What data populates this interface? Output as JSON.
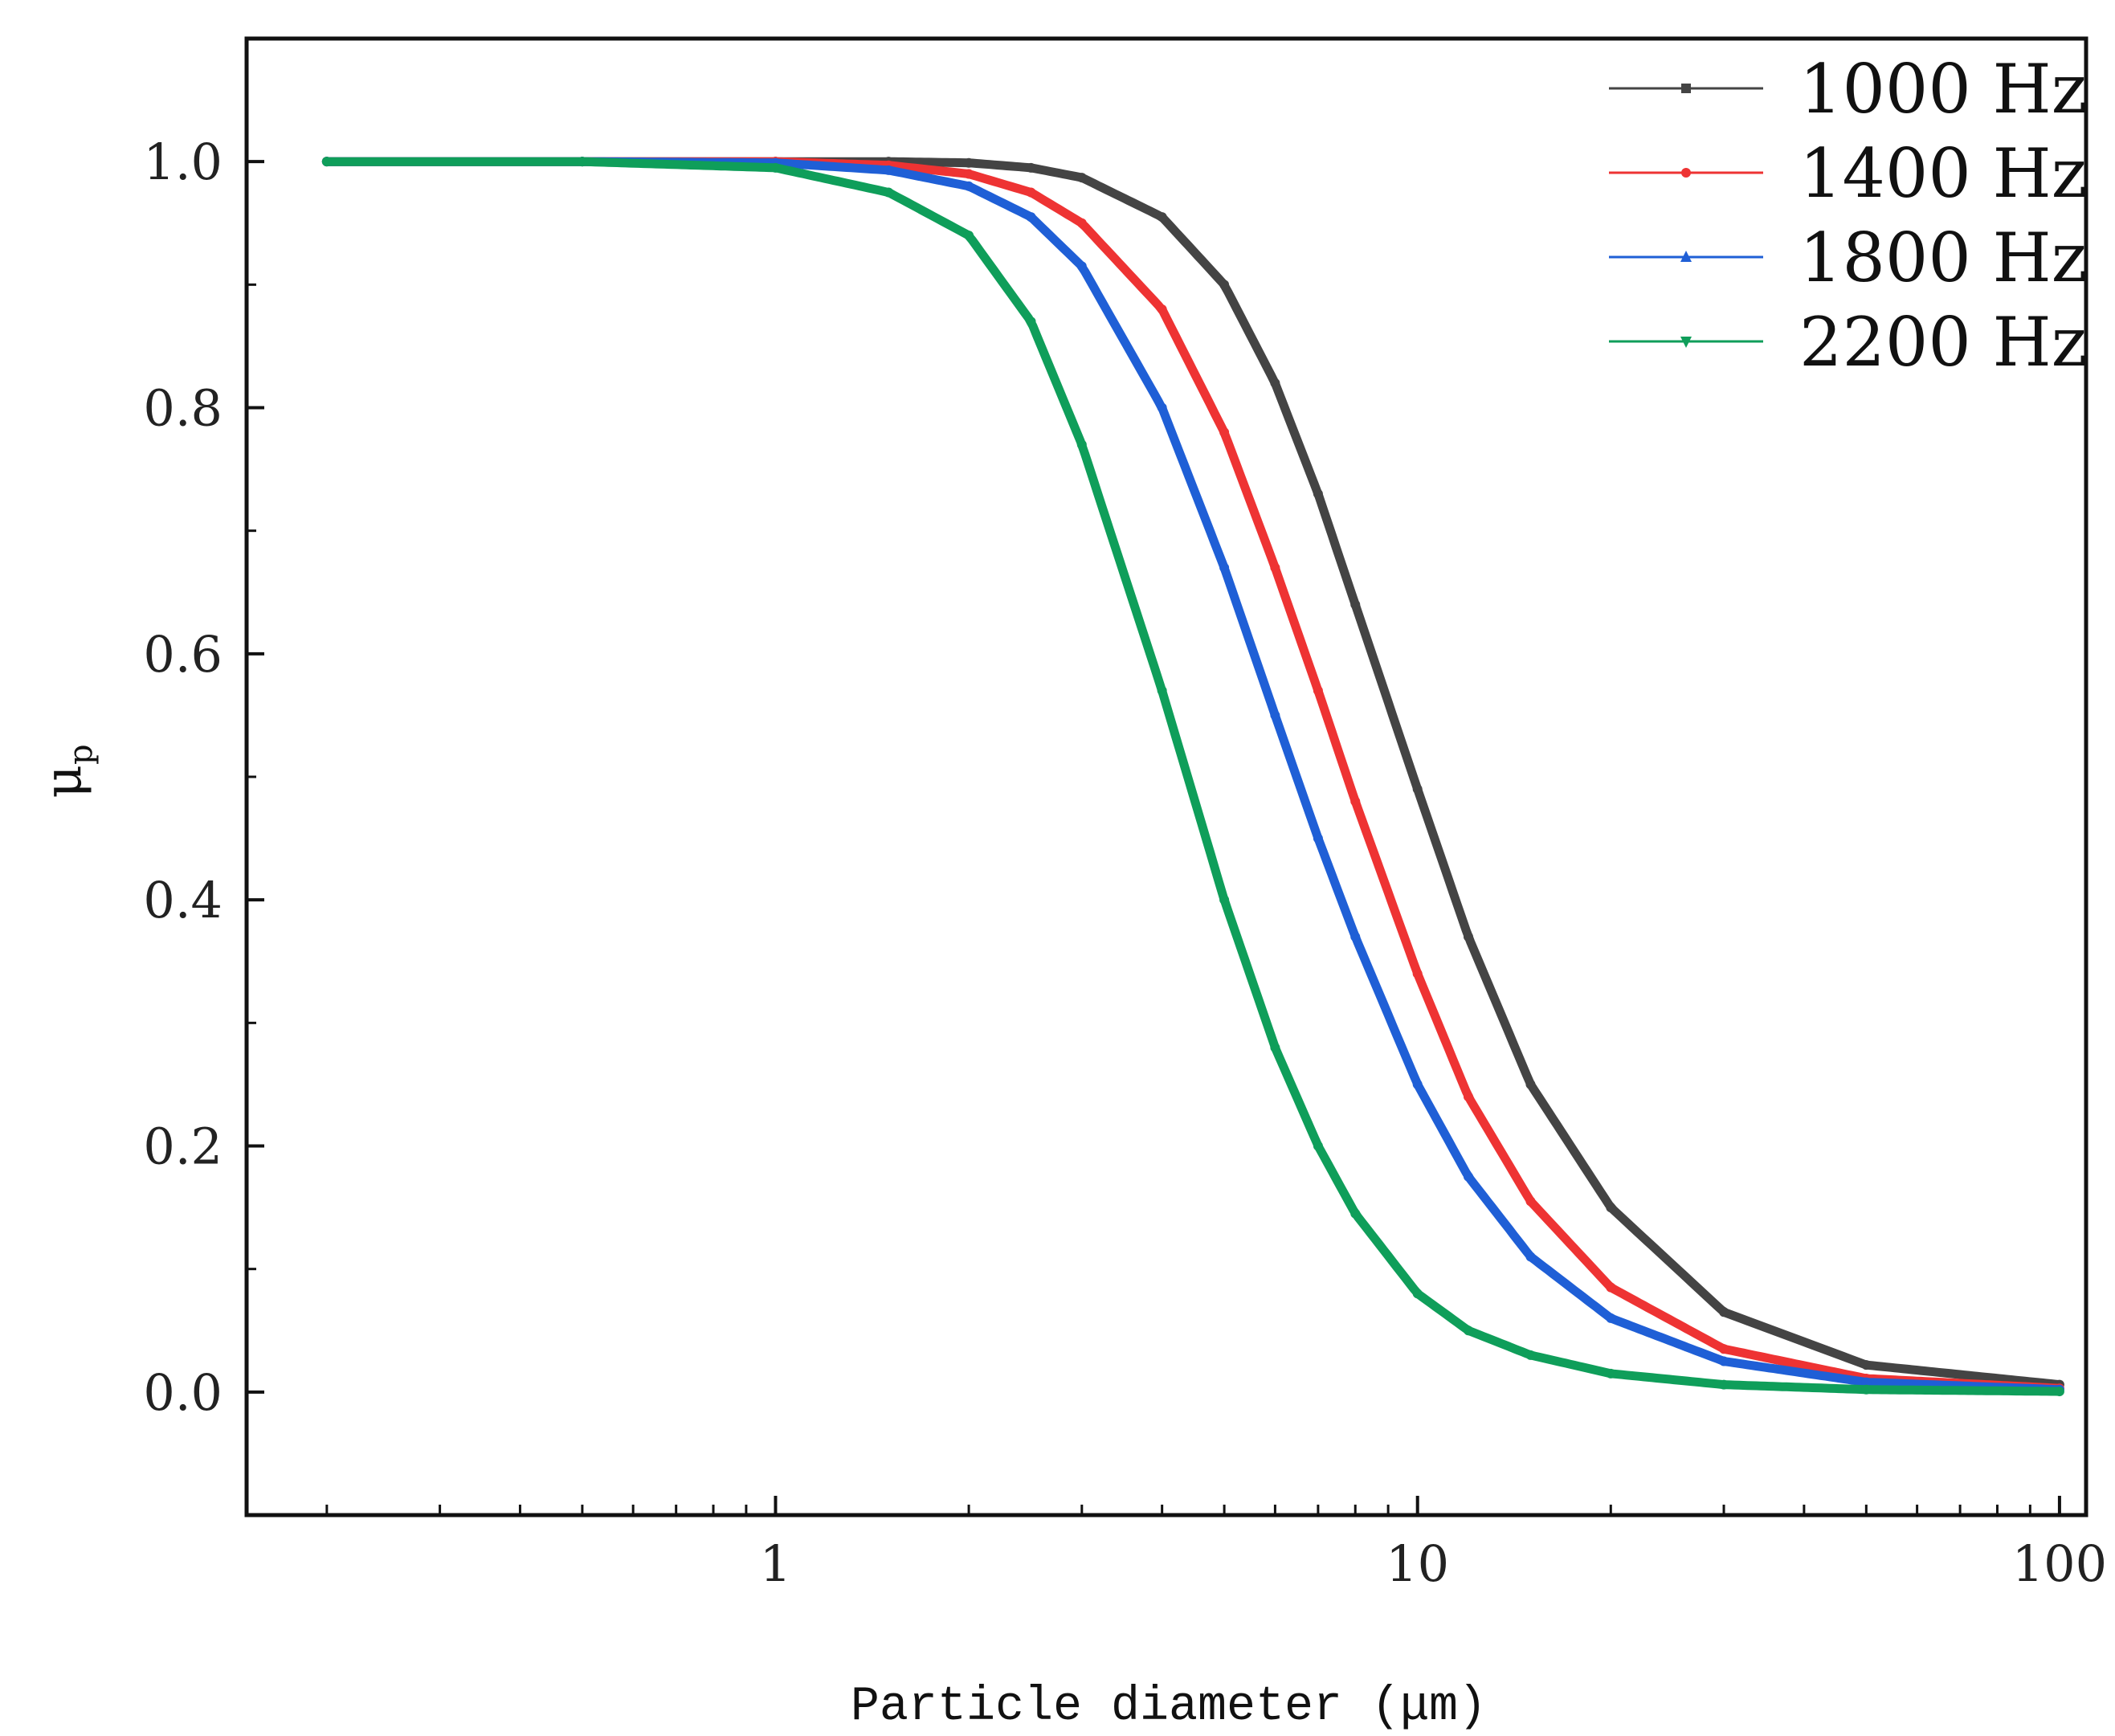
{
  "chart_data": {
    "type": "line",
    "title": "",
    "xlabel": "Particle diameter (μm)",
    "ylabel": "μ",
    "ylabel_sub": "p",
    "xscale": "log",
    "xlim": [
      0.15,
      110
    ],
    "ylim": [
      -0.1,
      1.1
    ],
    "grid": false,
    "legend_position": "top-right",
    "xticks": [
      {
        "value": 1,
        "label": "1"
      },
      {
        "value": 10,
        "label": "10"
      },
      {
        "value": 100,
        "label": "100"
      }
    ],
    "yticks": [
      {
        "value": 0.0,
        "label": "0.0"
      },
      {
        "value": 0.2,
        "label": "0.2"
      },
      {
        "value": 0.4,
        "label": "0.4"
      },
      {
        "value": 0.6,
        "label": "0.6"
      },
      {
        "value": 0.8,
        "label": "0.8"
      },
      {
        "value": 1.0,
        "label": "1.0"
      }
    ],
    "x": [
      0.2,
      0.5,
      1,
      1.5,
      2,
      2.5,
      3,
      4,
      5,
      6,
      7,
      8,
      10,
      12,
      15,
      20,
      30,
      50,
      100
    ],
    "series": [
      {
        "name": "1000 Hz",
        "color": "#444444",
        "marker": "square",
        "values": [
          1.0,
          1.0,
          1.0,
          1.0,
          0.999,
          0.995,
          0.987,
          0.955,
          0.9,
          0.82,
          0.73,
          0.64,
          0.49,
          0.37,
          0.25,
          0.15,
          0.065,
          0.022,
          0.006
        ]
      },
      {
        "name": "1400 Hz",
        "color": "#ee3333",
        "marker": "circle",
        "values": [
          1.0,
          1.0,
          1.0,
          0.997,
          0.99,
          0.975,
          0.95,
          0.88,
          0.78,
          0.67,
          0.57,
          0.48,
          0.34,
          0.24,
          0.155,
          0.085,
          0.035,
          0.011,
          0.003
        ]
      },
      {
        "name": "1800 Hz",
        "color": "#1f5fd6",
        "marker": "triangle",
        "values": [
          1.0,
          1.0,
          0.999,
          0.993,
          0.98,
          0.955,
          0.915,
          0.8,
          0.67,
          0.55,
          0.45,
          0.37,
          0.25,
          0.175,
          0.11,
          0.06,
          0.025,
          0.008,
          0.002
        ]
      },
      {
        "name": "2200 Hz",
        "color": "#0f9e5a",
        "marker": "triangle-down",
        "values": [
          1.0,
          1.0,
          0.995,
          0.975,
          0.94,
          0.87,
          0.77,
          0.57,
          0.4,
          0.28,
          0.2,
          0.145,
          0.08,
          0.05,
          0.03,
          0.015,
          0.006,
          0.002,
          0.0005
        ]
      }
    ]
  }
}
